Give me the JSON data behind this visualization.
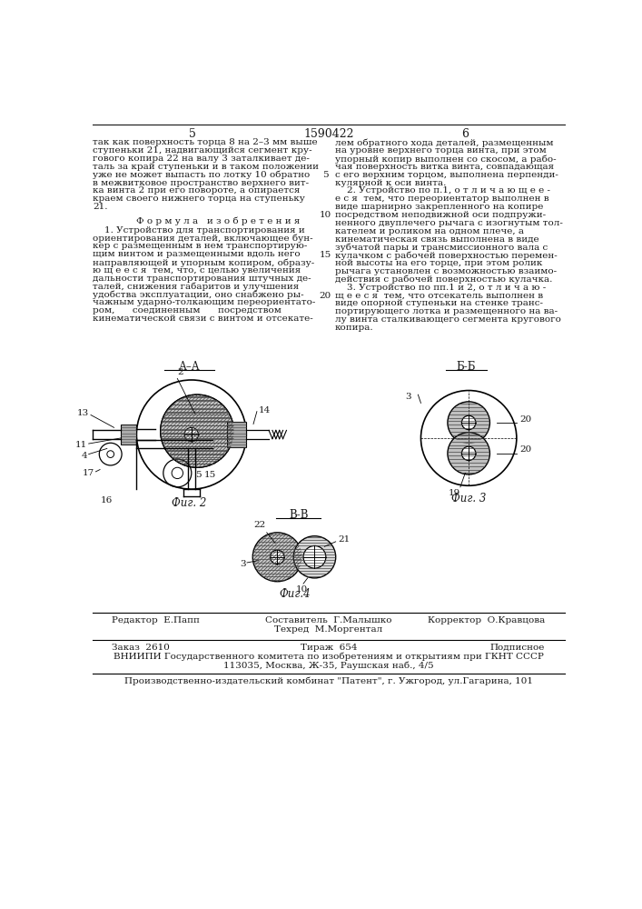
{
  "page_number_left": "5",
  "patent_number": "1590422",
  "page_number_right": "6",
  "bg_color": "#ffffff",
  "text_color": "#1a1a1a",
  "col1_lines": [
    "так как поверхность торца 8 на 2–3 мм выше",
    "ступеньки 21, надвигающийся сегмент кру-",
    "гового копира 22 на валу 3 заталкивает де-",
    "таль за край ступеньки и в таком положении",
    "уже не может выпасть по лотку 10 обратно",
    "в межвитковое пространство верхнего вит-",
    "ка винта 2 при его повороте, а опирается",
    "краем своего нижнего торца на ступеньку",
    "21."
  ],
  "line_numbers": [
    "5",
    "10",
    "15",
    "20"
  ],
  "formula_title": "Ф о р м у л а   и з о б р е т е н и я",
  "formula_lines": [
    "    1. Устройство для транспортирования и",
    "ориентирования деталей, включающее бун-",
    "кер с размещенным в нем транспортирую-",
    "щим винтом и размещенными вдоль него",
    "направляющей и упорным копиром, образу-",
    "ю щ е е с я  тем, что, с целью увеличения",
    "дальности транспортирования штучных де-",
    "талей, снижения габаритов и улучшения",
    "удобства эксплуатации, оно снабжено ры-",
    "чажным ударно-толкающим переориентато-",
    "ром,      соединенным      посредством",
    "кинематической связи с винтом и отсекате-"
  ],
  "col2_top_lines": [
    "лем обратного хода деталей, размещенным",
    "на уровне верхнего торца винта, при этом",
    "упорный копир выполнен со скосом, а рабо-",
    "чая поверхность витка винта, совпадающая",
    "с его верхним торцом, выполнена перпенди-",
    "кулярной к оси винта.",
    "    2. Устройство по п.1, о т л и ч а ю щ е е -",
    "е с я  тем, что переориентатор выполнен в",
    "виде шарнирно закрепленного на копире",
    "посредством неподвижной оси подпружи-",
    "ненного двуплечего рычага с изогнутым тол-",
    "кателем и роликом на одном плече, а",
    "кинематическая связь выполнена в виде",
    "зубчатой пары и трансмиссионного вала с",
    "кулачком с рабочей поверхностью перемен-",
    "ной высоты на его торце, при этом ролик",
    "рычага установлен с возможностью взаимо-",
    "действия с рабочей поверхностью кулачка.",
    "    3. Устройство по пп.1 и 2, о т л и ч а ю -",
    "щ е е с я  тем, что отсекатель выполнен в",
    "виде опорной ступеньки на стенке транс-",
    "портирующего лотка и размещенного на ва-",
    "лу винта сталкивающего сегмента кругового",
    "копира."
  ],
  "fig2_label": "А–А",
  "fig3_label": "Б-Б",
  "fig4_label": "В-В",
  "fig2_caption": "Фиг. 2",
  "fig3_caption": "Фиг. 3",
  "fig4_caption": "Фиг.4",
  "footer_line1_left": "Редактор  Е.Папп",
  "footer_line1_center1": "Составитель  Г.Малышко",
  "footer_line1_center2": "Техред  М.Моргентал",
  "footer_line1_right": "Корректор  О.Кравцова",
  "footer_line2_left": "Заказ  2610",
  "footer_line2_center": "Тираж  654",
  "footer_line2_right": "Подписное",
  "footer_line3": "ВНИИПИ Государственного комитета по изобретениям и открытиям при ГКНТ СССР",
  "footer_line4": "113035, Москва, Ж-35, Раушская наб., 4/5",
  "footer_line5": "Производственно-издательский комбинат \"Патент\", г. Ужгород, ул.Гагарина, 101"
}
